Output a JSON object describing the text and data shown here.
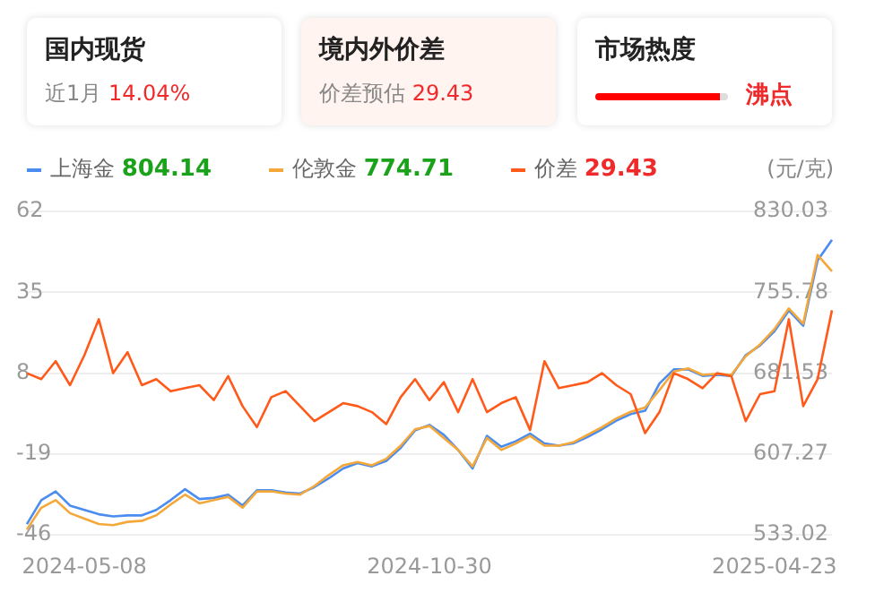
{
  "chart_data": {
    "type": "line",
    "annotations": [
      "国内现货",
      "近1月",
      "14.04%",
      "境内外价差",
      "价差预估",
      "29.43",
      "市场热度",
      "沸点",
      "804.14",
      "774.71",
      "29.43"
    ],
    "y2label": "(元/克)",
    "categories": [
      null,
      null,
      null,
      null,
      "2024-05-08",
      null,
      null,
      null,
      null,
      null,
      null,
      null,
      null,
      null,
      null,
      null,
      null,
      null,
      null,
      null,
      null,
      null,
      null,
      null,
      null,
      null,
      null,
      null,
      "2024-10-30",
      null,
      null,
      null,
      null,
      null,
      null,
      null,
      null,
      null,
      null,
      null,
      null,
      null,
      null,
      null,
      null,
      null,
      null,
      null,
      null,
      null,
      null,
      null,
      "2025-04-23",
      null,
      null,
      null,
      null
    ],
    "series": [
      {
        "name": "上海金",
        "color": "#4a8cf0",
        "axis": "y2",
        "values": [
          543,
          565,
          573,
          560,
          556,
          552,
          550,
          551,
          551,
          556,
          565,
          575,
          566,
          567,
          570,
          560,
          574,
          574,
          572,
          571,
          577,
          585,
          594,
          599,
          596,
          601,
          613,
          629,
          634,
          625,
          611,
          594,
          624,
          614,
          619,
          626,
          617,
          615,
          617,
          623,
          630,
          638,
          644,
          647,
          672,
          685,
          685,
          679,
          680,
          679,
          698,
          707,
          720,
          739,
          725,
          785,
          804
        ]
      },
      {
        "name": "伦敦金",
        "color": "#f5a83a",
        "axis": "y2",
        "values": [
          538,
          558,
          565,
          553,
          548,
          543,
          542,
          545,
          546,
          551,
          561,
          570,
          562,
          565,
          568,
          558,
          573,
          573,
          571,
          570,
          578,
          588,
          597,
          600,
          597,
          603,
          615,
          630,
          633,
          622,
          611,
          596,
          622,
          611,
          617,
          624,
          615,
          615,
          618,
          625,
          632,
          640,
          646,
          650,
          666,
          683,
          686,
          680,
          681,
          680,
          697,
          708,
          722,
          741,
          727,
          790,
          775
        ]
      },
      {
        "name": "价差",
        "color": "#ff5a1a",
        "axis": "y",
        "values": [
          8,
          6,
          12,
          4,
          14,
          26,
          8,
          15,
          4,
          6,
          2,
          3,
          4,
          -1,
          7,
          -3,
          -10,
          0,
          2,
          -3,
          -8,
          -5,
          -2,
          -3,
          -5,
          -9,
          0,
          6,
          -1,
          5,
          -5,
          6,
          -5,
          -2,
          0,
          -11,
          12,
          3,
          4,
          5,
          8,
          4,
          1,
          -12,
          -5,
          8,
          6,
          3,
          8,
          7,
          -8,
          1,
          2,
          26,
          -3,
          6,
          29
        ]
      }
    ],
    "ylim": [
      -46,
      62
    ],
    "yticks": [
      -46,
      -19,
      8,
      35,
      62
    ],
    "y2lim": [
      533.02,
      830.03
    ],
    "y2ticks": [
      533.02,
      607.27,
      681.53,
      755.78,
      830.03
    ],
    "grid": "y",
    "legend": "top"
  }
}
